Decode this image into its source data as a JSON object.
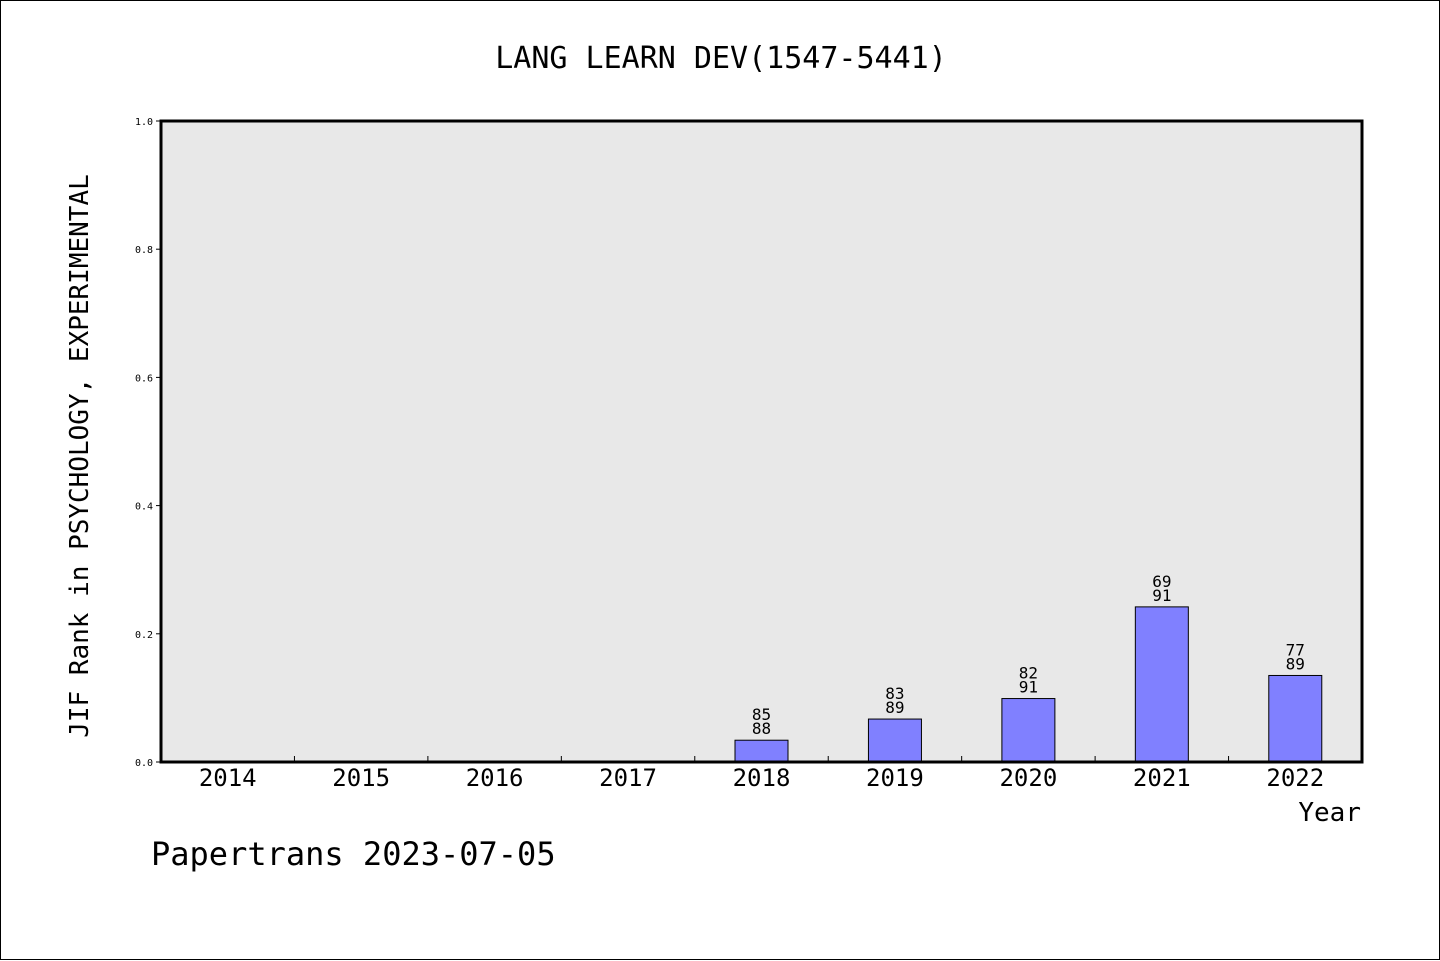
{
  "chart_data": {
    "type": "bar",
    "title": "LANG LEARN DEV(1547-5441)",
    "xlabel": "Year",
    "ylabel": "JIF Rank in PSYCHOLOGY, EXPERIMENTAL",
    "ylim": [
      0,
      1
    ],
    "yticks": [
      "0.0",
      "0.2",
      "0.4",
      "0.6",
      "0.8",
      "1.0"
    ],
    "grid": false,
    "categories": [
      "2014",
      "2015",
      "2016",
      "2017",
      "2018",
      "2019",
      "2020",
      "2021",
      "2022"
    ],
    "values": [
      null,
      null,
      null,
      null,
      0.034,
      0.067,
      0.099,
      0.242,
      0.135
    ],
    "labels": [
      null,
      null,
      null,
      null,
      [
        "85",
        "88"
      ],
      [
        "83",
        "89"
      ],
      [
        "82",
        "91"
      ],
      [
        "69",
        "91"
      ],
      [
        "77",
        "89"
      ]
    ],
    "colors": {
      "bar": "#8080ff",
      "plot_background": "#e8e8e8",
      "axis": "#000000"
    }
  },
  "footer": {
    "credit": "Papertrans 2023-07-05"
  }
}
